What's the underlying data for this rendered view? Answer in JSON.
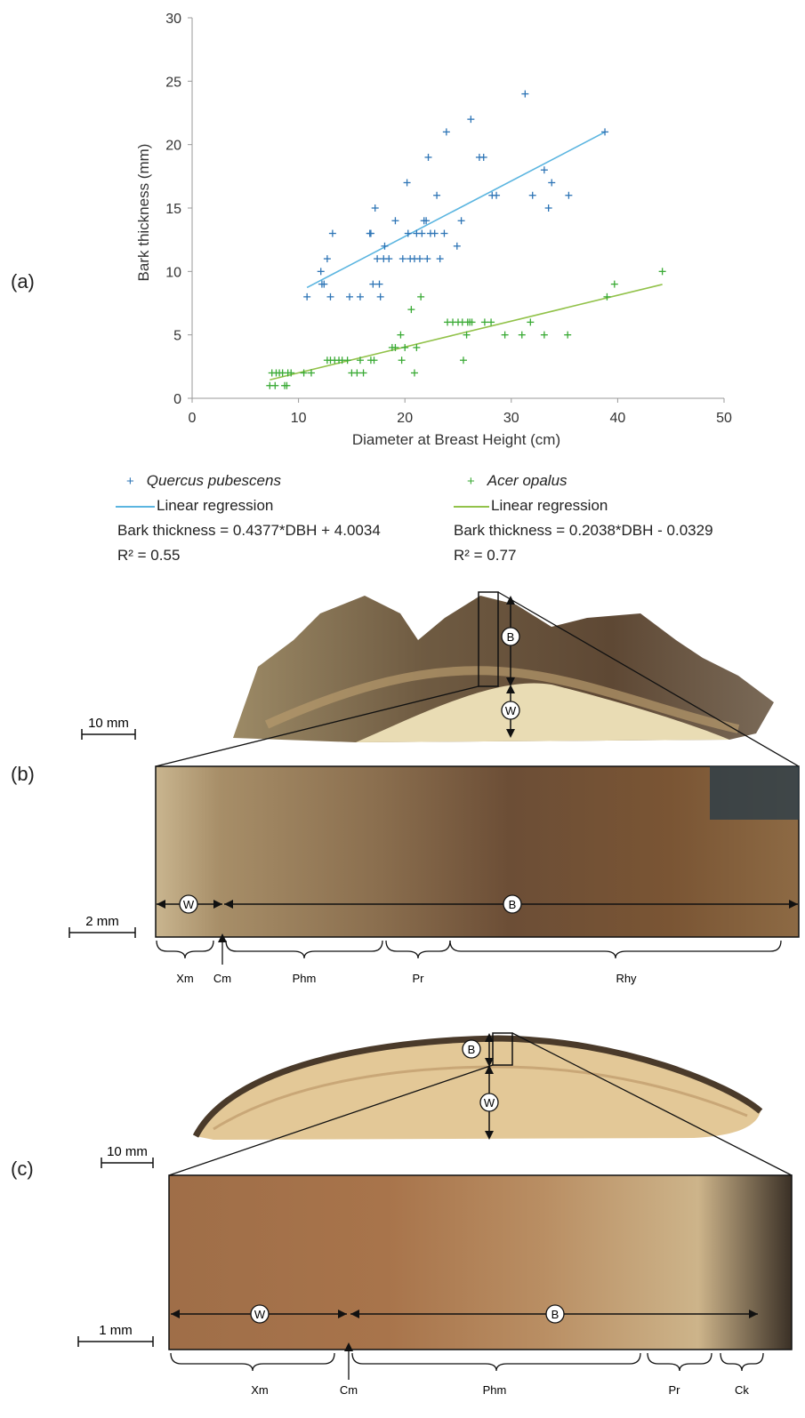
{
  "panels": {
    "a": "(a)",
    "b": "(b)",
    "c": "(c)"
  },
  "chart_data": {
    "type": "scatter",
    "xlabel": "Diameter at Breast Height (cm)",
    "ylabel": "Bark thickness (mm)",
    "xlim": [
      0,
      50
    ],
    "ylim": [
      0,
      30
    ],
    "xticks": [
      0,
      10,
      20,
      30,
      40,
      50
    ],
    "yticks": [
      0,
      5,
      10,
      15,
      20,
      25,
      30
    ],
    "grid": false,
    "legend_position": "bottom",
    "series": [
      {
        "name": "Quercus pubescens",
        "marker": "+",
        "color": "#2e75b6",
        "points": [
          [
            10.8,
            8
          ],
          [
            12.1,
            10
          ],
          [
            12.2,
            9
          ],
          [
            12.4,
            9
          ],
          [
            12.7,
            11
          ],
          [
            13.0,
            8
          ],
          [
            13.2,
            13
          ],
          [
            14.8,
            8
          ],
          [
            15.8,
            8
          ],
          [
            16.7,
            13
          ],
          [
            16.8,
            13
          ],
          [
            17.0,
            9
          ],
          [
            17.2,
            15
          ],
          [
            17.4,
            11
          ],
          [
            17.6,
            9
          ],
          [
            17.7,
            8
          ],
          [
            18.0,
            11
          ],
          [
            18.1,
            12
          ],
          [
            18.5,
            11
          ],
          [
            19.1,
            14
          ],
          [
            19.8,
            11
          ],
          [
            20.2,
            17
          ],
          [
            20.3,
            13
          ],
          [
            20.5,
            11
          ],
          [
            20.9,
            11
          ],
          [
            21.1,
            13
          ],
          [
            21.4,
            11
          ],
          [
            21.6,
            13
          ],
          [
            21.8,
            14
          ],
          [
            22.0,
            14
          ],
          [
            22.1,
            11
          ],
          [
            22.2,
            19
          ],
          [
            22.4,
            13
          ],
          [
            22.8,
            13
          ],
          [
            23.0,
            16
          ],
          [
            23.3,
            11
          ],
          [
            23.7,
            13
          ],
          [
            23.9,
            21
          ],
          [
            24.9,
            12
          ],
          [
            25.3,
            14
          ],
          [
            26.2,
            22
          ],
          [
            27.0,
            19
          ],
          [
            27.4,
            19
          ],
          [
            28.2,
            16
          ],
          [
            28.6,
            16
          ],
          [
            31.3,
            24
          ],
          [
            32.0,
            16
          ],
          [
            33.1,
            18
          ],
          [
            33.5,
            15
          ],
          [
            33.8,
            17
          ],
          [
            35.4,
            16
          ],
          [
            38.8,
            21
          ]
        ]
      },
      {
        "name": "Acer opalus",
        "marker": "+",
        "color": "#3aaa35",
        "points": [
          [
            7.3,
            1
          ],
          [
            7.5,
            2
          ],
          [
            7.8,
            1
          ],
          [
            7.9,
            2
          ],
          [
            8.2,
            2
          ],
          [
            8.5,
            2
          ],
          [
            8.7,
            1
          ],
          [
            8.9,
            1
          ],
          [
            9.0,
            2
          ],
          [
            9.3,
            2
          ],
          [
            10.5,
            2
          ],
          [
            11.2,
            2
          ],
          [
            12.7,
            3
          ],
          [
            13.0,
            3
          ],
          [
            13.4,
            3
          ],
          [
            13.8,
            3
          ],
          [
            14.1,
            3
          ],
          [
            14.6,
            3
          ],
          [
            15.0,
            2
          ],
          [
            15.5,
            2
          ],
          [
            15.8,
            3
          ],
          [
            16.1,
            2
          ],
          [
            16.8,
            3
          ],
          [
            17.1,
            3
          ],
          [
            18.8,
            4
          ],
          [
            19.1,
            4
          ],
          [
            19.6,
            5
          ],
          [
            19.7,
            3
          ],
          [
            20.0,
            4
          ],
          [
            20.6,
            7
          ],
          [
            20.9,
            2
          ],
          [
            21.1,
            4
          ],
          [
            21.5,
            8
          ],
          [
            24.0,
            6
          ],
          [
            24.5,
            6
          ],
          [
            25.0,
            6
          ],
          [
            25.4,
            6
          ],
          [
            25.5,
            3
          ],
          [
            25.8,
            5
          ],
          [
            25.9,
            6
          ],
          [
            26.1,
            6
          ],
          [
            26.3,
            6
          ],
          [
            27.5,
            6
          ],
          [
            28.1,
            6
          ],
          [
            29.4,
            5
          ],
          [
            31.0,
            5
          ],
          [
            31.8,
            6
          ],
          [
            33.1,
            5
          ],
          [
            35.3,
            5
          ],
          [
            39.0,
            8
          ],
          [
            39.7,
            9
          ],
          [
            44.2,
            10
          ]
        ]
      }
    ],
    "regressions": [
      {
        "label": "Linear regression",
        "color": "#5bb5e0",
        "slope": 0.4377,
        "intercept": 4.0034,
        "x_range": [
          10.8,
          38.8
        ],
        "equation": "Bark thickness = 0.4377*DBH + 4.0034",
        "r2": "R² = 0.55"
      },
      {
        "label": "Linear regression",
        "color": "#92c24a",
        "slope": 0.2038,
        "intercept": -0.0329,
        "x_range": [
          7.3,
          44.2
        ],
        "equation": "Bark thickness = 0.2038*DBH - 0.0329",
        "r2": "R² = 0.77"
      }
    ]
  },
  "figure_b": {
    "scale_top": "10 mm",
    "scale_zoom": "2 mm",
    "marker_bark": "B",
    "marker_wood": "W",
    "tissues": [
      "Xm",
      "Cm",
      "Phm",
      "Pr",
      "Rhy"
    ]
  },
  "figure_c": {
    "scale_top": "10 mm",
    "scale_zoom": "1 mm",
    "marker_bark": "B",
    "marker_wood": "W",
    "tissues": [
      "Xm",
      "Cm",
      "Phm",
      "Pr",
      "Ck"
    ]
  }
}
